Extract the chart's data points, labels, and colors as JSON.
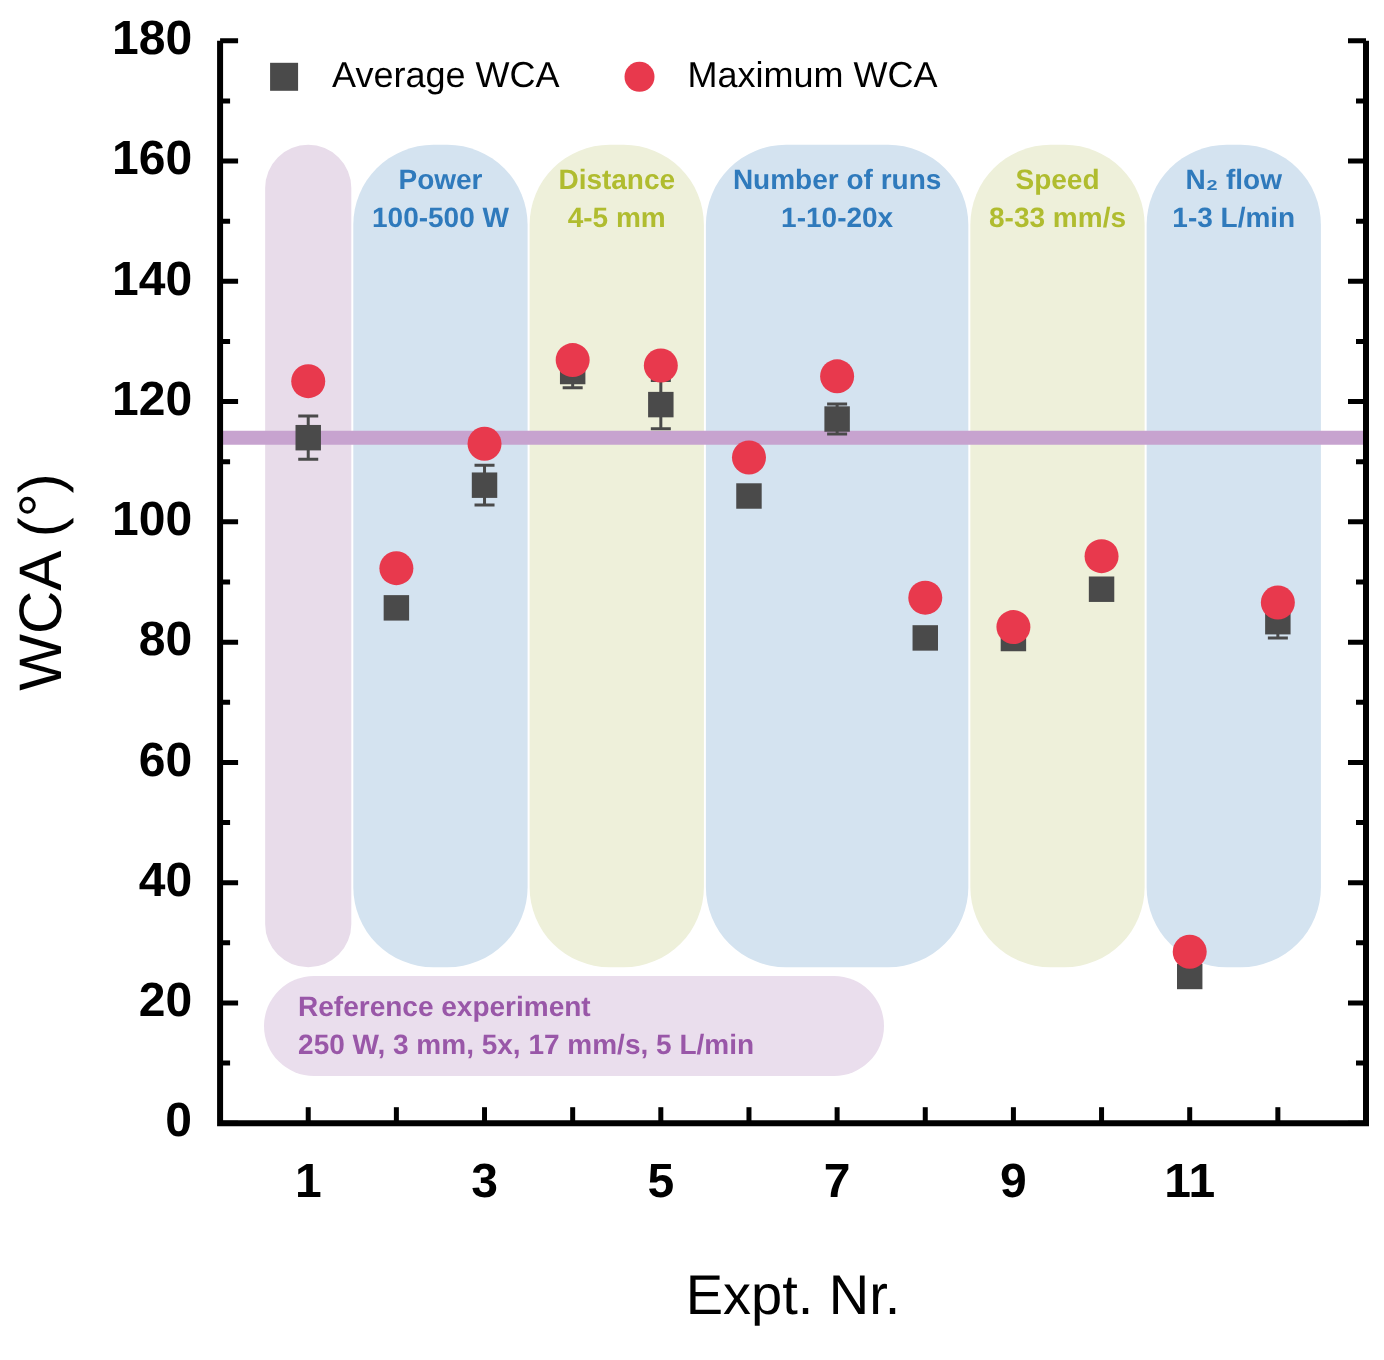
{
  "chart_data": {
    "type": "scatter",
    "xlabel": "Expt. Nr.",
    "ylabel": "WCA (°)",
    "x": [
      1,
      2,
      3,
      4,
      5,
      6,
      7,
      8,
      9,
      10,
      11,
      12
    ],
    "xlim": [
      0,
      13
    ],
    "xticks": [
      1,
      {
        "value": 2,
        "label": null
      },
      3,
      {
        "value": 4,
        "label": null
      },
      5,
      {
        "value": 6,
        "label": null
      },
      7,
      {
        "value": 8,
        "label": null
      },
      9,
      {
        "value": 10,
        "label": null
      },
      11,
      {
        "value": 12,
        "label": null
      }
    ],
    "ylim": [
      0,
      180
    ],
    "yticks": [
      0,
      {
        "value": 10,
        "label": null
      },
      20,
      {
        "value": 30,
        "label": null
      },
      40,
      {
        "value": 50,
        "label": null
      },
      60,
      {
        "value": 70,
        "label": null
      },
      80,
      {
        "value": 90,
        "label": null
      },
      100,
      {
        "value": 110,
        "label": null
      },
      120,
      {
        "value": 130,
        "label": null
      },
      140,
      {
        "value": 150,
        "label": null
      },
      160,
      {
        "value": 170,
        "label": null
      },
      180
    ],
    "series": [
      {
        "name": "Average WCA",
        "color": "#4a4a4a",
        "marker": "square",
        "values": [
          114,
          85.7,
          106.1,
          125,
          119.5,
          104.3,
          117.1,
          80.7,
          80.6,
          88.8,
          24.4,
          83.4
        ],
        "errors": [
          3.6,
          null,
          3.3,
          2.7,
          4,
          null,
          2.5,
          null,
          null,
          null,
          null,
          2.7
        ]
      },
      {
        "name": "Maximum WCA",
        "color": "#e8394d",
        "marker": "circle",
        "values": [
          123.4,
          92.3,
          113,
          126.9,
          126,
          110.7,
          124.2,
          87.4,
          82.5,
          94.3,
          28.5,
          86.6
        ]
      }
    ],
    "bands": [
      {
        "axis": "x",
        "from": 0.5,
        "to": 1.5,
        "label": null,
        "color": "#e8dcea"
      },
      {
        "axis": "x",
        "from": 1.5,
        "to": 3.5,
        "label": "Power\n100-500 W",
        "color": "#d4e3f0"
      },
      {
        "axis": "x",
        "from": 3.5,
        "to": 5.5,
        "label": "Distance\n4-5 mm",
        "color": "#eef0da"
      },
      {
        "axis": "x",
        "from": 5.5,
        "to": 8.5,
        "label": "Number of runs\n1-10-20x",
        "color": "#d4e3f0"
      },
      {
        "axis": "x",
        "from": 8.5,
        "to": 10.5,
        "label": "Speed\n8-33 mm/s",
        "color": "#eef0da"
      },
      {
        "axis": "x",
        "from": 10.5,
        "to": 12.5,
        "label": "N₂ flow\n1-3 L/min",
        "color": "#d4e3f0"
      }
    ],
    "ref_lines": [
      {
        "axis": "y",
        "value": 114,
        "label": null,
        "color": "#c7a3cf"
      }
    ],
    "annotations": [
      "Reference experiment",
      "250 W, 3 mm, 5x, 17 mm/s, 5 L/min"
    ],
    "legend": "top left",
    "grid": false
  }
}
